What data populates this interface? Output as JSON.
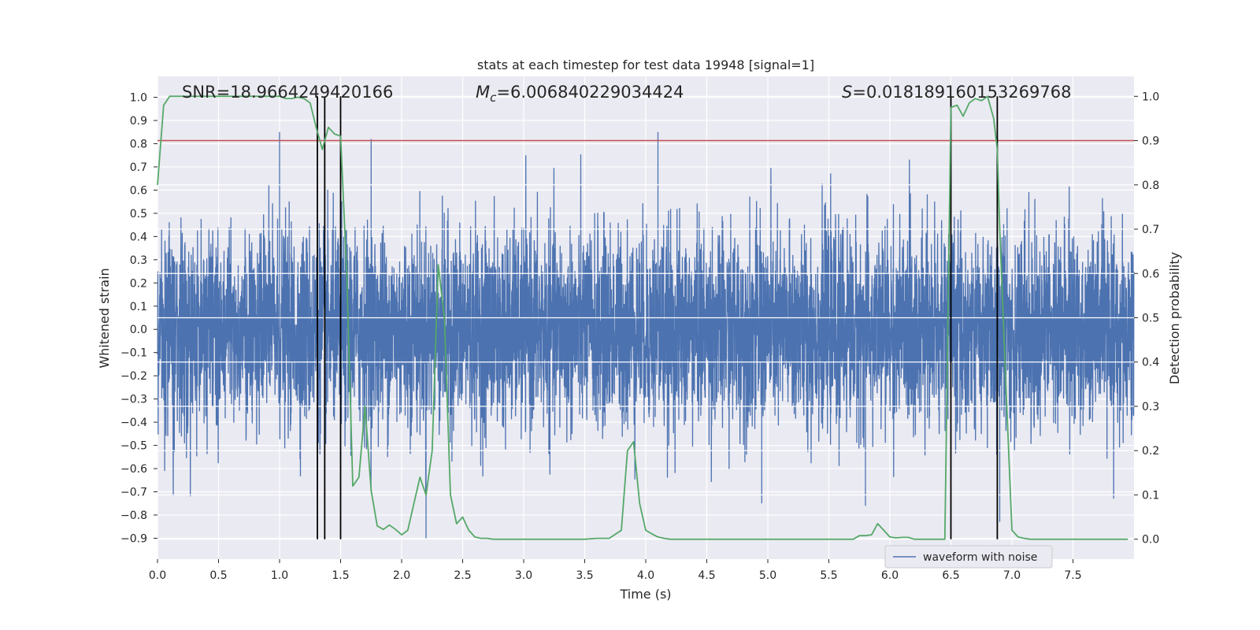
{
  "chart_data": {
    "type": "line",
    "title": "stats at each timestep for test data 19948 [signal=1]",
    "xlabel": "Time (s)",
    "ylabel_left": "Whitened strain",
    "ylabel_right": "Detection probability",
    "xlim": [
      0.0,
      8.0
    ],
    "ylim_left": [
      -0.99,
      1.09
    ],
    "ylim_right": [
      -0.045,
      1.045
    ],
    "x_ticks": [
      "0.0",
      "0.5",
      "1.0",
      "1.5",
      "2.0",
      "2.5",
      "3.0",
      "3.5",
      "4.0",
      "4.5",
      "5.0",
      "5.5",
      "6.0",
      "6.5",
      "7.0",
      "7.5"
    ],
    "y_ticks_left": [
      "-0.9",
      "-0.8",
      "-0.7",
      "-0.6",
      "-0.5",
      "-0.4",
      "-0.3",
      "-0.2",
      "-0.1",
      "0.0",
      "0.1",
      "0.2",
      "0.3",
      "0.4",
      "0.5",
      "0.6",
      "0.7",
      "0.8",
      "0.9",
      "1.0"
    ],
    "y_ticks_right": [
      "0.0",
      "0.1",
      "0.2",
      "0.3",
      "0.4",
      "0.5",
      "0.6",
      "0.7",
      "0.8",
      "0.9",
      "1.0"
    ],
    "annotations": {
      "snr": "SNR=18.9664249420166",
      "mc_symbol": "M",
      "mc_sub": "c",
      "mc_value": "=6.006840229034424",
      "s_symbol": "S",
      "s_value": "=0.018189160153269768"
    },
    "legend": {
      "label": "waveform with noise",
      "location": "lower center-right"
    },
    "threshold": {
      "value": 0.9,
      "axis": "right",
      "color": "#c44e52"
    },
    "vertical_lines": [
      1.31,
      1.37,
      1.5,
      6.5,
      6.88
    ],
    "waveform": {
      "name": "waveform with noise",
      "color": "#4c72b0",
      "duration_s": 8.0,
      "typical_amplitude": 0.42,
      "spikes": [
        {
          "t": 1.0,
          "v": 0.85
        },
        {
          "t": 1.75,
          "v": 0.82
        },
        {
          "t": 4.1,
          "v": 0.85
        },
        {
          "t": 2.2,
          "v": -0.9
        },
        {
          "t": 6.9,
          "v": -0.83
        },
        {
          "t": 4.95,
          "v": -0.75
        },
        {
          "t": 1.31,
          "v": -0.72
        },
        {
          "t": 5.8,
          "v": -0.76
        }
      ]
    },
    "series": [
      {
        "name": "Detection probability",
        "axis": "right",
        "color": "#55a868",
        "x": [
          0.0,
          0.05,
          0.1,
          0.15,
          0.2,
          0.3,
          0.4,
          0.5,
          0.6,
          0.7,
          0.8,
          0.9,
          1.0,
          1.05,
          1.1,
          1.15,
          1.2,
          1.25,
          1.3,
          1.35,
          1.4,
          1.45,
          1.5,
          1.55,
          1.6,
          1.65,
          1.7,
          1.75,
          1.8,
          1.85,
          1.9,
          1.95,
          2.0,
          2.05,
          2.1,
          2.15,
          2.2,
          2.25,
          2.3,
          2.35,
          2.4,
          2.45,
          2.5,
          2.55,
          2.6,
          2.65,
          2.7,
          2.75,
          2.8,
          2.85,
          2.9,
          2.95,
          3.0,
          3.1,
          3.2,
          3.3,
          3.4,
          3.5,
          3.6,
          3.7,
          3.8,
          3.85,
          3.9,
          3.95,
          4.0,
          4.05,
          4.1,
          4.15,
          4.2,
          4.25,
          4.3,
          4.35,
          4.4,
          4.5,
          4.6,
          4.7,
          4.8,
          4.9,
          5.0,
          5.1,
          5.2,
          5.3,
          5.4,
          5.5,
          5.6,
          5.7,
          5.75,
          5.8,
          5.85,
          5.9,
          5.95,
          6.0,
          6.05,
          6.1,
          6.15,
          6.2,
          6.3,
          6.4,
          6.45,
          6.5,
          6.55,
          6.6,
          6.65,
          6.7,
          6.75,
          6.8,
          6.85,
          6.88,
          6.9,
          6.95,
          7.0,
          7.05,
          7.1,
          7.15,
          7.2,
          7.3,
          7.4,
          7.5,
          7.6,
          7.7,
          7.8,
          7.9,
          7.95
        ],
        "y": [
          0.8,
          0.98,
          1.0,
          1.0,
          1.0,
          1.0,
          1.0,
          1.0,
          1.0,
          1.0,
          1.0,
          1.0,
          1.0,
          0.995,
          0.995,
          0.998,
          0.995,
          0.985,
          0.93,
          0.88,
          0.93,
          0.915,
          0.91,
          0.6,
          0.12,
          0.14,
          0.3,
          0.11,
          0.03,
          0.022,
          0.032,
          0.022,
          0.01,
          0.02,
          0.08,
          0.14,
          0.1,
          0.2,
          0.62,
          0.5,
          0.1,
          0.035,
          0.05,
          0.02,
          0.005,
          0.002,
          0.002,
          0.0,
          0.0,
          0.0,
          0.0,
          0.0,
          0.0,
          0.0,
          0.0,
          0.0,
          0.0,
          0.0,
          0.002,
          0.002,
          0.02,
          0.2,
          0.22,
          0.08,
          0.02,
          0.012,
          0.005,
          0.002,
          0.0,
          0.0,
          0.0,
          0.0,
          0.0,
          0.0,
          0.0,
          0.0,
          0.0,
          0.0,
          0.0,
          0.0,
          0.0,
          0.0,
          0.0,
          0.0,
          0.0,
          0.0,
          0.008,
          0.008,
          0.01,
          0.035,
          0.02,
          0.005,
          0.003,
          0.004,
          0.004,
          0.0,
          0.0,
          0.0,
          0.0,
          0.975,
          0.98,
          0.955,
          0.985,
          0.995,
          0.99,
          1.0,
          0.95,
          0.88,
          0.7,
          0.35,
          0.02,
          0.005,
          0.002,
          0.0,
          0.0,
          0.0,
          0.0,
          0.0,
          0.0,
          0.0,
          0.0,
          0.0,
          0.0
        ]
      }
    ]
  }
}
